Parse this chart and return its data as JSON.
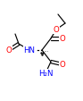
{
  "bg_color": "#ffffff",
  "bond_color": "#000000",
  "atom_colors": {
    "O": "#ff0000",
    "N": "#0000ff"
  },
  "figsize": [
    0.93,
    1.14
  ],
  "dpi": 100,
  "lw": 0.85,
  "fs": 6.2
}
